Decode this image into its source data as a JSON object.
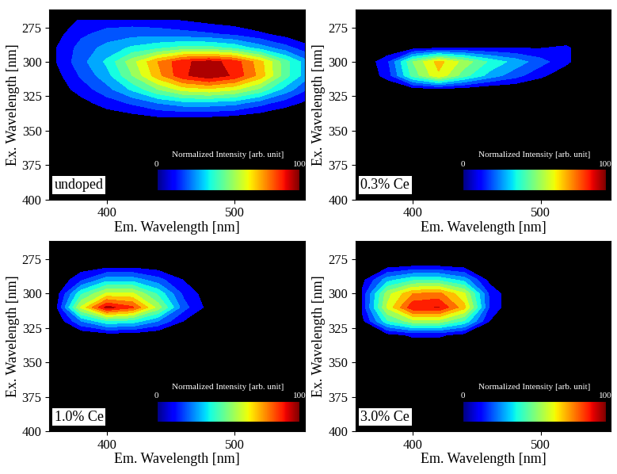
{
  "chart_data": [
    {
      "type": "contour",
      "annotation": "undoped",
      "xlabel": "Em. Wavelength [nm]",
      "ylabel": "Ex. Wavelength [nm]",
      "xlim": [
        355,
        555
      ],
      "ylim": [
        400,
        262
      ],
      "xticks": [
        400,
        500
      ],
      "yticks": [
        275,
        300,
        325,
        350,
        375,
        400
      ],
      "x": [
        360,
        380,
        400,
        420,
        440,
        460,
        480,
        500,
        520,
        540,
        560
      ],
      "y": [
        270,
        280,
        290,
        300,
        310,
        320,
        330,
        340,
        350
      ],
      "cells": [
        [
          0,
          10,
          12,
          12,
          10,
          8,
          5,
          3,
          0,
          0,
          0
        ],
        [
          5,
          15,
          20,
          22,
          22,
          20,
          18,
          15,
          10,
          5,
          0
        ],
        [
          8,
          20,
          28,
          35,
          40,
          45,
          45,
          40,
          30,
          20,
          10
        ],
        [
          8,
          22,
          35,
          55,
          75,
          90,
          95,
          88,
          70,
          45,
          25
        ],
        [
          5,
          18,
          30,
          50,
          72,
          90,
          98,
          90,
          72,
          45,
          25
        ],
        [
          3,
          12,
          22,
          35,
          50,
          62,
          65,
          60,
          48,
          30,
          15
        ],
        [
          0,
          5,
          12,
          18,
          25,
          30,
          30,
          28,
          20,
          12,
          5
        ],
        [
          0,
          0,
          3,
          5,
          8,
          8,
          8,
          6,
          3,
          0,
          0
        ],
        [
          0,
          0,
          0,
          0,
          0,
          0,
          0,
          0,
          0,
          0,
          0
        ]
      ],
      "colorbar": {
        "label": "Normalized Intensity [arb. unit]",
        "range": [
          0,
          100
        ],
        "ticks": [
          0,
          100
        ]
      }
    },
    {
      "type": "contour",
      "annotation": "0.3% Ce",
      "xlabel": "Em. Wavelength [nm]",
      "ylabel": "Ex. Wavelength [nm]",
      "xlim": [
        355,
        555
      ],
      "ylim": [
        400,
        262
      ],
      "xticks": [
        400,
        500
      ],
      "yticks": [
        275,
        300,
        325,
        350,
        375,
        400
      ],
      "x": [
        360,
        380,
        400,
        420,
        440,
        460,
        480,
        500,
        520,
        540,
        560
      ],
      "y": [
        270,
        280,
        290,
        300,
        310,
        320,
        330,
        340,
        350
      ],
      "cells": [
        [
          0,
          0,
          0,
          0,
          0,
          0,
          0,
          0,
          0,
          0,
          0
        ],
        [
          0,
          0,
          0,
          0,
          0,
          0,
          0,
          0,
          0,
          0,
          0
        ],
        [
          0,
          0,
          5,
          8,
          8,
          8,
          8,
          8,
          10,
          0,
          0
        ],
        [
          0,
          15,
          50,
          70,
          55,
          40,
          30,
          20,
          10,
          0,
          0
        ],
        [
          0,
          12,
          45,
          65,
          45,
          30,
          20,
          10,
          3,
          0,
          0
        ],
        [
          0,
          0,
          3,
          5,
          3,
          0,
          0,
          0,
          0,
          0,
          0
        ],
        [
          0,
          0,
          0,
          0,
          0,
          0,
          0,
          0,
          0,
          0,
          0
        ],
        [
          0,
          0,
          0,
          0,
          0,
          0,
          0,
          0,
          0,
          0,
          0
        ],
        [
          0,
          0,
          0,
          0,
          0,
          0,
          0,
          0,
          0,
          0,
          0
        ]
      ],
      "colorbar": {
        "label": "Normalized Intensity [arb. unit]",
        "range": [
          0,
          100
        ],
        "ticks": [
          0,
          100
        ]
      }
    },
    {
      "type": "contour",
      "annotation": "1.0% Ce",
      "xlabel": "Em. Wavelength [nm]",
      "ylabel": "Ex. Wavelength [nm]",
      "xlim": [
        355,
        555
      ],
      "ylim": [
        400,
        262
      ],
      "xticks": [
        400,
        500
      ],
      "yticks": [
        275,
        300,
        325,
        350,
        375,
        400
      ],
      "x": [
        360,
        380,
        400,
        420,
        440,
        460,
        480,
        500,
        520,
        540,
        560
      ],
      "y": [
        270,
        280,
        290,
        300,
        310,
        320,
        330,
        340,
        350
      ],
      "cells": [
        [
          0,
          0,
          0,
          0,
          0,
          0,
          0,
          0,
          0,
          0,
          0
        ],
        [
          0,
          3,
          5,
          5,
          3,
          0,
          0,
          0,
          0,
          0,
          0
        ],
        [
          0,
          15,
          30,
          30,
          20,
          8,
          0,
          0,
          0,
          0,
          0
        ],
        [
          3,
          40,
          60,
          60,
          40,
          15,
          3,
          0,
          0,
          0,
          0
        ],
        [
          5,
          60,
          95,
          85,
          55,
          20,
          5,
          0,
          0,
          0,
          0
        ],
        [
          0,
          25,
          40,
          38,
          25,
          8,
          0,
          0,
          0,
          0,
          0
        ],
        [
          0,
          0,
          3,
          3,
          0,
          0,
          0,
          0,
          0,
          0,
          0
        ],
        [
          0,
          0,
          0,
          0,
          0,
          0,
          0,
          0,
          0,
          0,
          0
        ],
        [
          0,
          0,
          0,
          0,
          0,
          0,
          0,
          0,
          0,
          0,
          0
        ]
      ],
      "colorbar": {
        "label": "Normalized Intensity [arb. unit]",
        "range": [
          0,
          100
        ],
        "ticks": [
          0,
          100
        ]
      }
    },
    {
      "type": "contour",
      "annotation": "3.0% Ce",
      "xlabel": "Em. Wavelength [nm]",
      "ylabel": "Ex. Wavelength [nm]",
      "xlim": [
        355,
        555
      ],
      "ylim": [
        400,
        262
      ],
      "xticks": [
        400,
        500
      ],
      "yticks": [
        275,
        300,
        325,
        350,
        375,
        400
      ],
      "x": [
        360,
        380,
        400,
        420,
        440,
        460,
        480,
        500,
        520,
        540,
        560
      ],
      "y": [
        270,
        280,
        290,
        300,
        310,
        320,
        330,
        340,
        350
      ],
      "cells": [
        [
          0,
          0,
          0,
          0,
          0,
          0,
          0,
          0,
          0,
          0,
          0
        ],
        [
          0,
          5,
          8,
          8,
          5,
          0,
          0,
          0,
          0,
          0,
          0
        ],
        [
          5,
          30,
          40,
          40,
          30,
          5,
          0,
          0,
          0,
          0,
          0
        ],
        [
          10,
          55,
          75,
          78,
          60,
          15,
          0,
          0,
          0,
          0,
          0
        ],
        [
          10,
          60,
          90,
          92,
          70,
          15,
          0,
          0,
          0,
          0,
          0
        ],
        [
          5,
          40,
          55,
          55,
          40,
          8,
          0,
          0,
          0,
          0,
          0
        ],
        [
          0,
          5,
          10,
          10,
          5,
          0,
          0,
          0,
          0,
          0,
          0
        ],
        [
          0,
          0,
          0,
          0,
          0,
          0,
          0,
          0,
          0,
          0,
          0
        ],
        [
          0,
          0,
          0,
          0,
          0,
          0,
          0,
          0,
          0,
          0,
          0
        ]
      ],
      "colorbar": {
        "label": "Normalized Intensity [arb. unit]",
        "range": [
          0,
          100
        ],
        "ticks": [
          0,
          100
        ]
      }
    }
  ]
}
